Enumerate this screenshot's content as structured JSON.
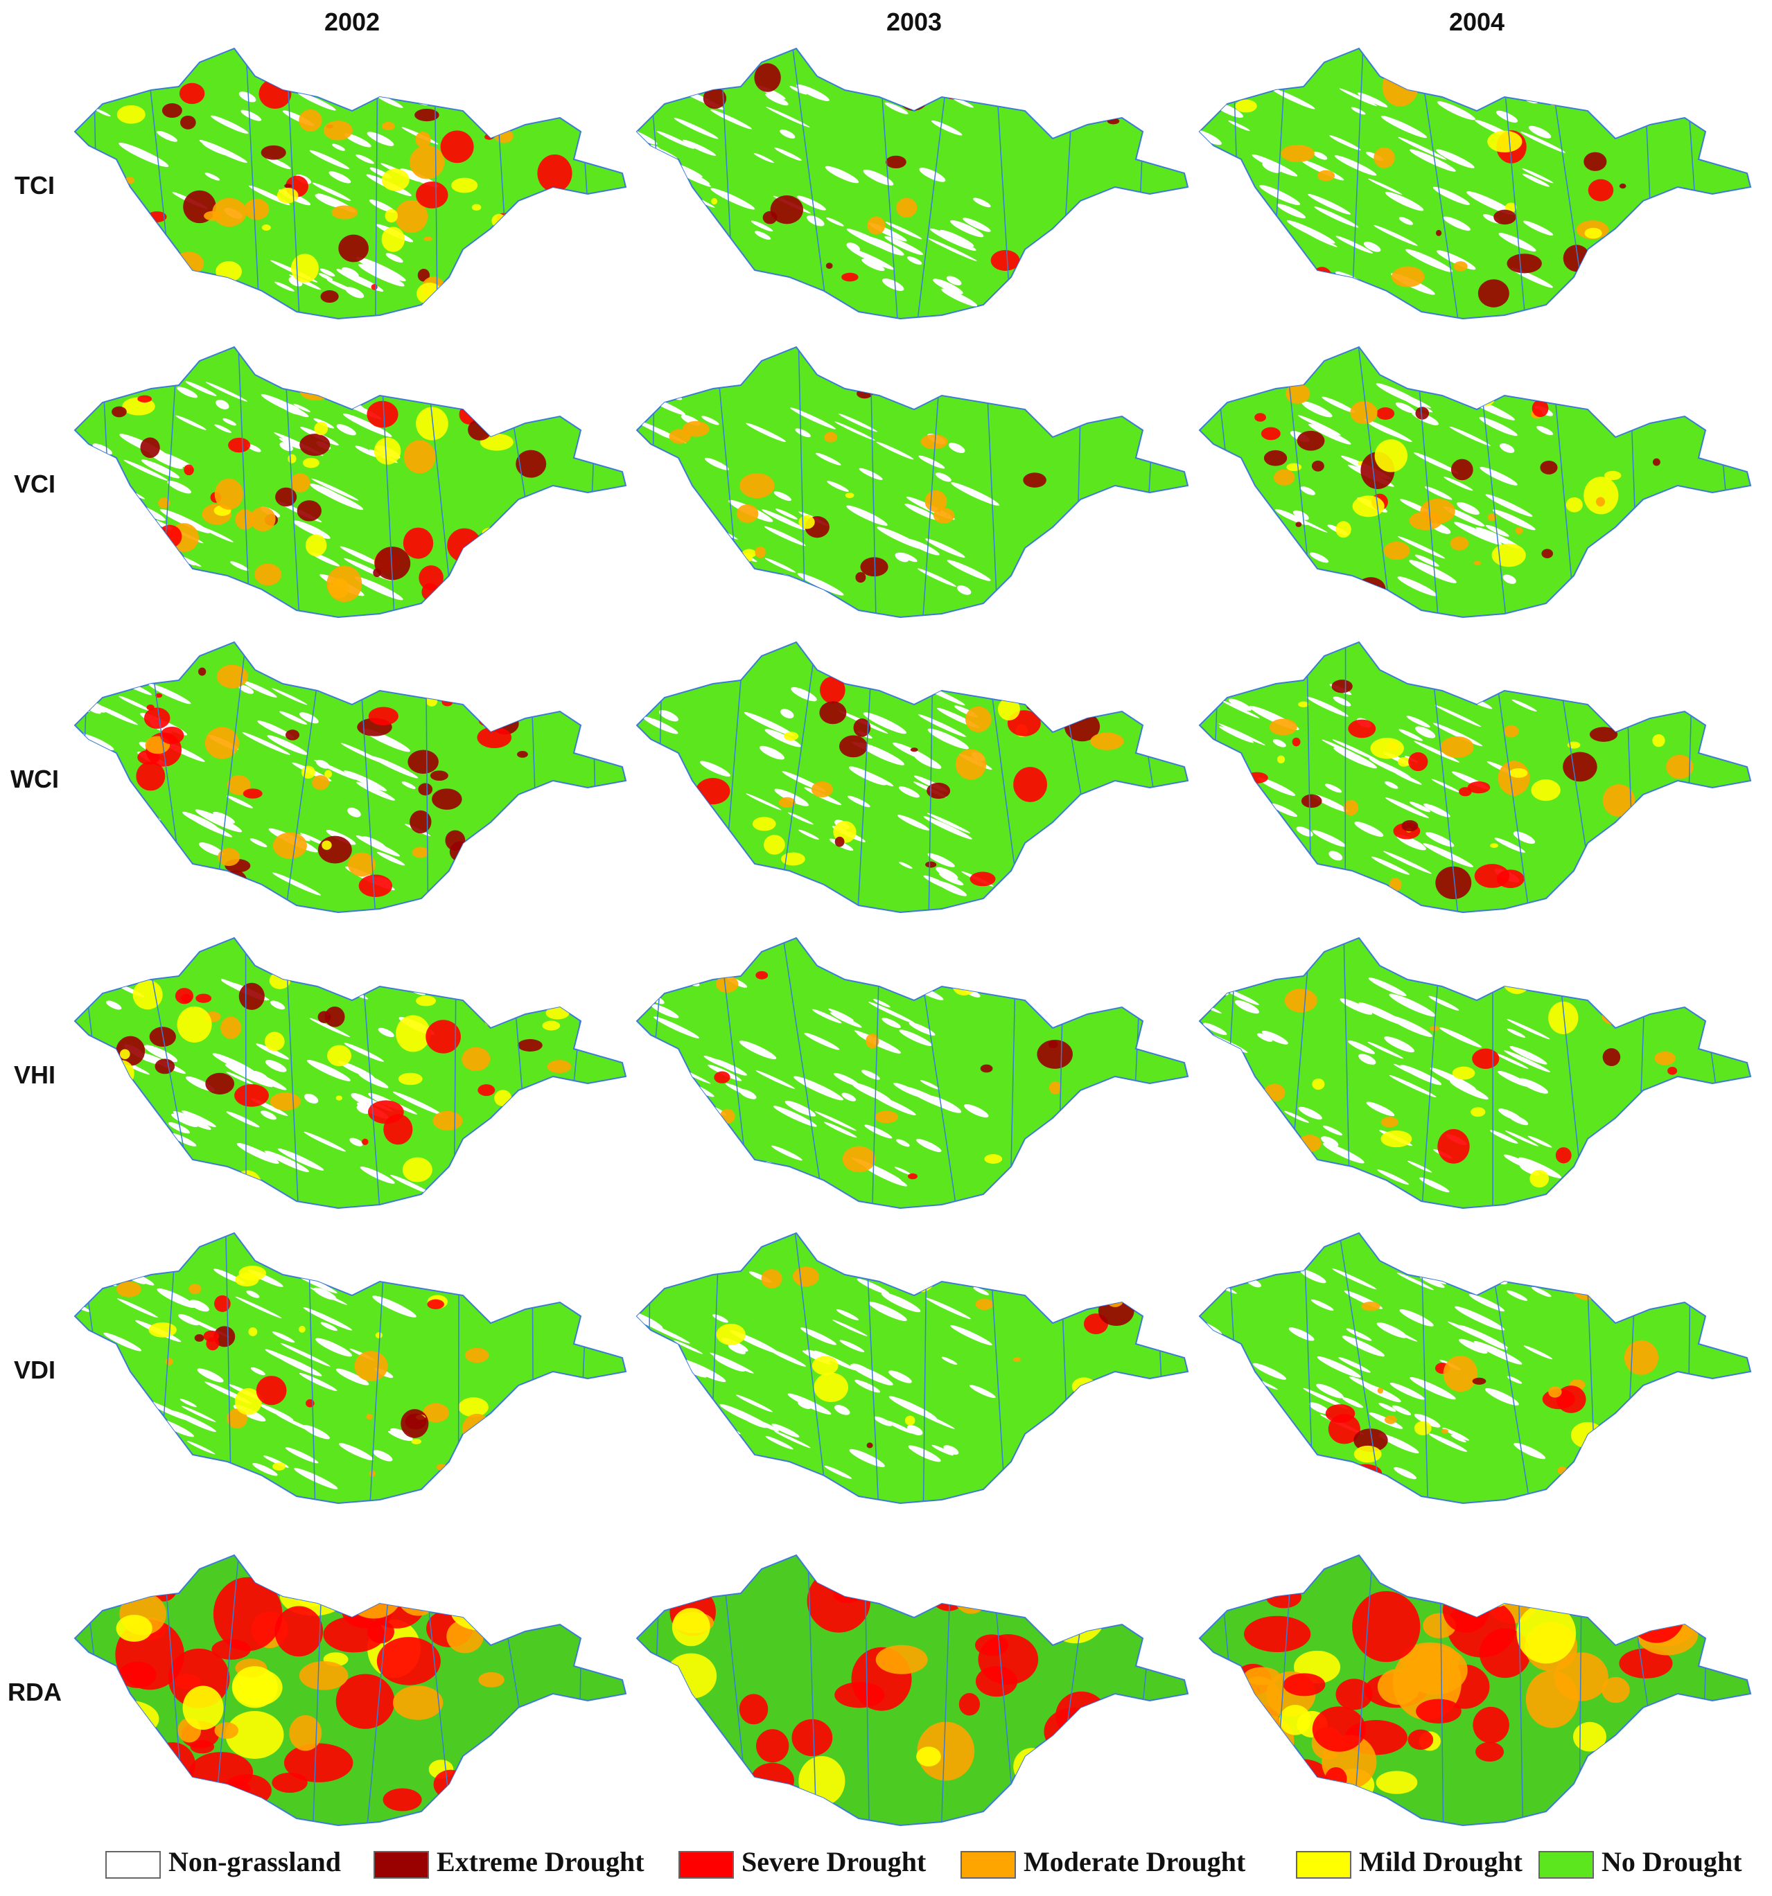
{
  "columns": [
    "2002",
    "2003",
    "2004"
  ],
  "rows": [
    "TCI",
    "VCI",
    "WCI",
    "VHI",
    "VDI",
    "RDA"
  ],
  "legend": [
    {
      "label": "Non-grassland",
      "color": "#ffffff"
    },
    {
      "label": "Extreme Drought",
      "color": "#990000"
    },
    {
      "label": "Severe Drought",
      "color": "#ff0000"
    },
    {
      "label": "Moderate Drought",
      "color": "#ffa500"
    },
    {
      "label": "Mild Drought",
      "color": "#ffff00"
    },
    {
      "label": "No Drought",
      "color": "#5ce61e"
    }
  ]
}
